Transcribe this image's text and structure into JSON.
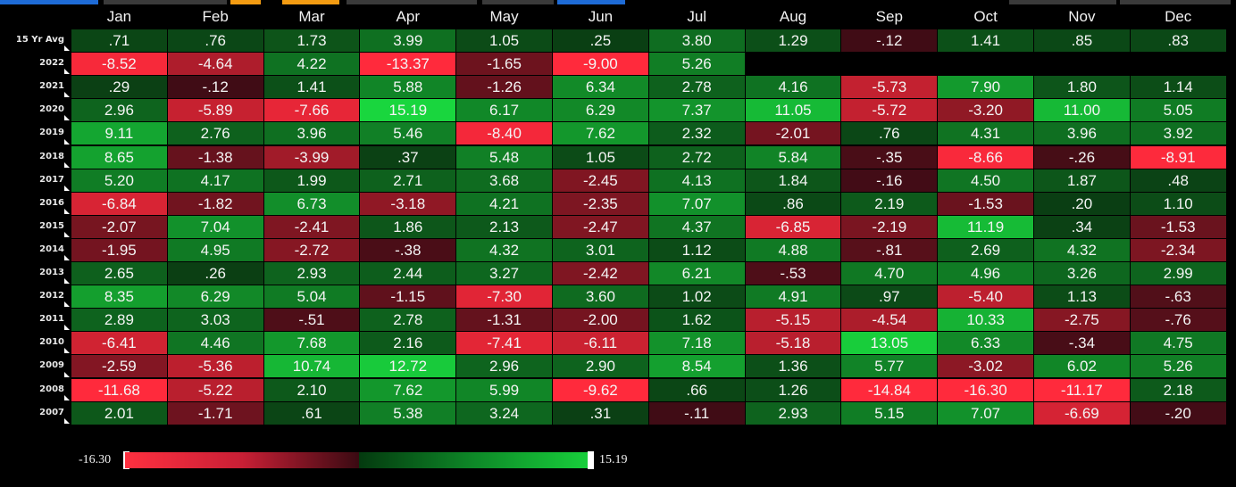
{
  "months": [
    "Jan",
    "Feb",
    "Mar",
    "Apr",
    "May",
    "Jun",
    "Jul",
    "Aug",
    "Sep",
    "Oct",
    "Nov",
    "Dec"
  ],
  "rows": [
    {
      "label": "15 Yr Avg",
      "values": [
        ".71",
        ".76",
        "1.73",
        "3.99",
        "1.05",
        ".25",
        "3.80",
        "1.29",
        "-.12",
        "1.41",
        ".85",
        ".83"
      ]
    },
    {
      "label": "2022",
      "values": [
        "-8.52",
        "-4.64",
        "4.22",
        "-13.37",
        "-1.65",
        "-9.00",
        "5.26",
        "",
        "",
        "",
        "",
        ""
      ]
    },
    {
      "label": "2021",
      "values": [
        ".29",
        "-.12",
        "1.41",
        "5.88",
        "-1.26",
        "6.34",
        "2.78",
        "4.16",
        "-5.73",
        "7.90",
        "1.80",
        "1.14"
      ]
    },
    {
      "label": "2020",
      "values": [
        "2.96",
        "-5.89",
        "-7.66",
        "15.19",
        "6.17",
        "6.29",
        "7.37",
        "11.05",
        "-5.72",
        "-3.20",
        "11.00",
        "5.05"
      ]
    },
    {
      "label": "2019",
      "values": [
        "9.11",
        "2.76",
        "3.96",
        "5.46",
        "-8.40",
        "7.62",
        "2.32",
        "-2.01",
        ".76",
        "4.31",
        "3.96",
        "3.92"
      ]
    },
    {
      "label": "2018",
      "values": [
        "8.65",
        "-1.38",
        "-3.99",
        ".37",
        "5.48",
        "1.05",
        "2.72",
        "5.84",
        "-.35",
        "-8.66",
        "-.26",
        "-8.91"
      ]
    },
    {
      "label": "2017",
      "values": [
        "5.20",
        "4.17",
        "1.99",
        "2.71",
        "3.68",
        "-2.45",
        "4.13",
        "1.84",
        "-.16",
        "4.50",
        "1.87",
        ".48"
      ]
    },
    {
      "label": "2016",
      "values": [
        "-6.84",
        "-1.82",
        "6.73",
        "-3.18",
        "4.21",
        "-2.35",
        "7.07",
        ".86",
        "2.19",
        "-1.53",
        ".20",
        "1.10"
      ]
    },
    {
      "label": "2015",
      "values": [
        "-2.07",
        "7.04",
        "-2.41",
        "1.86",
        "2.13",
        "-2.47",
        "4.37",
        "-6.85",
        "-2.19",
        "11.19",
        ".34",
        "-1.53"
      ]
    },
    {
      "label": "2014",
      "values": [
        "-1.95",
        "4.95",
        "-2.72",
        "-.38",
        "4.32",
        "3.01",
        "1.12",
        "4.88",
        "-.81",
        "2.69",
        "4.32",
        "-2.34"
      ]
    },
    {
      "label": "2013",
      "values": [
        "2.65",
        ".26",
        "2.93",
        "2.44",
        "3.27",
        "-2.42",
        "6.21",
        "-.53",
        "4.70",
        "4.96",
        "3.26",
        "2.99"
      ]
    },
    {
      "label": "2012",
      "values": [
        "8.35",
        "6.29",
        "5.04",
        "-1.15",
        "-7.30",
        "3.60",
        "1.02",
        "4.91",
        ".97",
        "-5.40",
        "1.13",
        "-.63"
      ]
    },
    {
      "label": "2011",
      "values": [
        "2.89",
        "3.03",
        "-.51",
        "2.78",
        "-1.31",
        "-2.00",
        "1.62",
        "-5.15",
        "-4.54",
        "10.33",
        "-2.75",
        "-.76"
      ]
    },
    {
      "label": "2010",
      "values": [
        "-6.41",
        "4.46",
        "7.68",
        "2.16",
        "-7.41",
        "-6.11",
        "7.18",
        "-5.18",
        "13.05",
        "6.33",
        "-.34",
        "4.75"
      ]
    },
    {
      "label": "2009",
      "values": [
        "-2.59",
        "-5.36",
        "10.74",
        "12.72",
        "2.96",
        "2.90",
        "8.54",
        "1.36",
        "5.77",
        "-3.02",
        "6.02",
        "5.26"
      ]
    },
    {
      "label": "2008",
      "values": [
        "-11.68",
        "-5.22",
        "2.10",
        "7.62",
        "5.99",
        "-9.62",
        ".66",
        "1.26",
        "-14.84",
        "-16.30",
        "-11.17",
        "2.18"
      ]
    },
    {
      "label": "2007",
      "values": [
        "2.01",
        "-1.71",
        ".61",
        "5.38",
        "3.24",
        ".31",
        "-.11",
        "2.93",
        "5.15",
        "7.07",
        "-6.69",
        "-.20"
      ]
    }
  ],
  "legend": {
    "min_label": "-16.30",
    "max_label": "15.19",
    "min": -16.3,
    "max": 15.19
  },
  "colors": {
    "neg_strong": "#ff2a3c",
    "neg_weak": "#3a0b14",
    "pos_weak": "#0a3a12",
    "pos_strong": "#19d63e",
    "accent_orange": "#f39c12",
    "accent_blue": "#1e6bd6"
  }
}
